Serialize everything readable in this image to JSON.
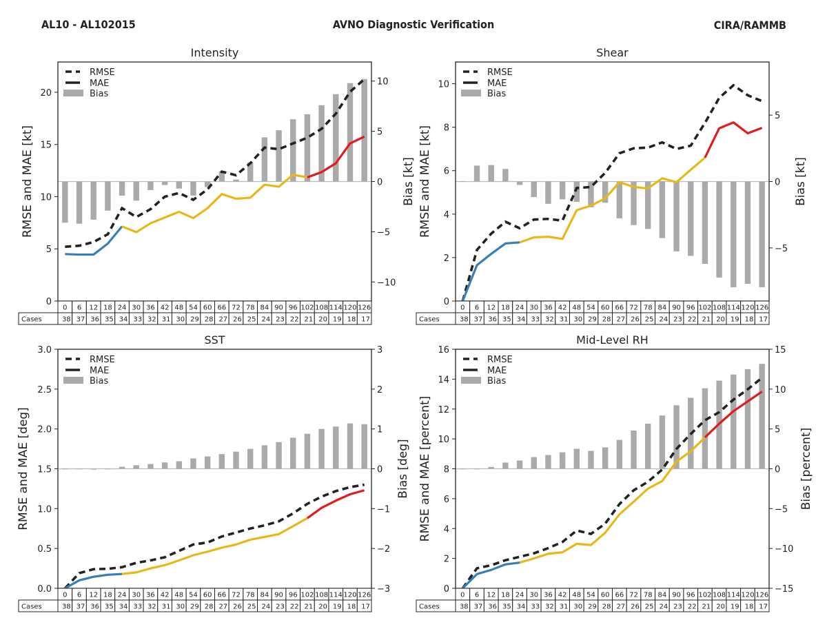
{
  "header": {
    "storm": "AL10 - AL102015",
    "title": "AVNO Diagnostic Verification",
    "source": "CIRA/RAMMB"
  },
  "table": {
    "row_label": "Cases",
    "hours": [
      "0",
      "6",
      "12",
      "18",
      "24",
      "30",
      "36",
      "42",
      "48",
      "54",
      "60",
      "66",
      "72",
      "78",
      "84",
      "90",
      "96",
      "102",
      "108",
      "114",
      "120",
      "126"
    ],
    "cases": [
      "38",
      "37",
      "36",
      "35",
      "34",
      "33",
      "32",
      "31",
      "30",
      "29",
      "28",
      "27",
      "26",
      "25",
      "24",
      "23",
      "22",
      "21",
      "20",
      "19",
      "18",
      "17"
    ]
  },
  "colors": {
    "rmse": "#222222",
    "bias": "#aaaaaa",
    "zero_line": "#bbbbbb",
    "axis": "#222222"
  },
  "chart_data": [
    {
      "type": "line",
      "title": "Intensity",
      "xlabel": "",
      "ylabel": "RMSE and MAE [kt]",
      "ylabel_right": "Bias [kt]",
      "x": [
        0,
        6,
        12,
        18,
        24,
        30,
        36,
        42,
        48,
        54,
        60,
        66,
        72,
        78,
        84,
        90,
        96,
        102,
        108,
        114,
        120,
        126
      ],
      "ylim": [
        0,
        22.9
      ],
      "ylim_right": [
        -11.9,
        11.9
      ],
      "yticks": [
        0,
        5,
        10,
        15,
        20
      ],
      "ytick_labels": [
        "0",
        "5",
        "10",
        "15",
        "20"
      ],
      "yticks_right": [
        -10,
        -5,
        0,
        5,
        10
      ],
      "ytick_labels_right": [
        "−10",
        "−5",
        "0",
        "5",
        "10"
      ],
      "legend_position": "top-left",
      "series": [
        {
          "name": "RMSE",
          "type": "line",
          "style": "dashed",
          "axis": "left",
          "color": "#222222",
          "values": [
            5.2,
            5.3,
            5.65,
            6.4,
            8.9,
            8.05,
            8.8,
            10.0,
            10.35,
            9.7,
            10.7,
            12.4,
            12.05,
            13.2,
            14.7,
            14.55,
            15.1,
            15.65,
            16.5,
            17.95,
            20.05,
            21.25
          ]
        },
        {
          "name": "MAE",
          "type": "line",
          "style": "solid",
          "axis": "left",
          "color": "#222222",
          "values": [
            4.5,
            4.45,
            4.45,
            5.5,
            7.15,
            6.6,
            7.45,
            8.0,
            8.55,
            7.95,
            8.9,
            10.25,
            9.8,
            9.9,
            11.15,
            10.95,
            12.1,
            11.85,
            12.35,
            13.2,
            15.1,
            15.75
          ],
          "color_segments": [
            {
              "from": 0,
              "to": 24,
              "color": "#377eb8"
            },
            {
              "from": 24,
              "to": 102,
              "color": "#e8b81a"
            },
            {
              "from": 102,
              "to": 126,
              "color": "#e41a1c"
            }
          ]
        },
        {
          "name": "Bias",
          "type": "bar",
          "axis": "right",
          "color": "#aaaaaa",
          "values": [
            -4.1,
            -4.2,
            -3.8,
            -2.9,
            -1.4,
            -1.9,
            -0.85,
            -0.35,
            -0.7,
            -1.4,
            -0.55,
            1.0,
            0.2,
            1.9,
            4.4,
            5.1,
            6.2,
            6.7,
            7.6,
            8.7,
            9.8,
            10.2
          ]
        }
      ]
    },
    {
      "type": "line",
      "title": "Shear",
      "xlabel": "",
      "ylabel": "RMSE and MAE [kt]",
      "ylabel_right": "Bias [kt]",
      "x": [
        0,
        6,
        12,
        18,
        24,
        30,
        36,
        42,
        48,
        54,
        60,
        66,
        72,
        78,
        84,
        90,
        96,
        102,
        108,
        114,
        120,
        126
      ],
      "ylim": [
        0,
        11
      ],
      "ylim_right": [
        -9,
        9
      ],
      "yticks": [
        0,
        2,
        4,
        6,
        8,
        10
      ],
      "ytick_labels": [
        "0",
        "2",
        "4",
        "6",
        "8",
        "10"
      ],
      "yticks_right": [
        -5,
        0,
        5
      ],
      "ytick_labels_right": [
        "−5",
        "0",
        "5"
      ],
      "legend_position": "top-left",
      "series": [
        {
          "name": "RMSE",
          "type": "line",
          "style": "dashed",
          "axis": "left",
          "color": "#222222",
          "values": [
            0,
            2.35,
            3.1,
            3.65,
            3.35,
            3.75,
            3.78,
            3.7,
            5.2,
            5.25,
            5.9,
            6.8,
            7.03,
            7.06,
            7.3,
            7.0,
            7.15,
            8.2,
            9.35,
            9.93,
            9.47,
            9.2
          ]
        },
        {
          "name": "MAE",
          "type": "line",
          "style": "solid",
          "axis": "left",
          "color": "#222222",
          "values": [
            0,
            1.65,
            2.17,
            2.65,
            2.7,
            2.93,
            2.96,
            2.86,
            4.18,
            4.39,
            4.72,
            5.47,
            5.25,
            5.18,
            5.65,
            5.47,
            6.04,
            6.6,
            7.95,
            8.22,
            7.72,
            7.97
          ],
          "color_segments": [
            {
              "from": 0,
              "to": 24,
              "color": "#377eb8"
            },
            {
              "from": 24,
              "to": 102,
              "color": "#e8b81a"
            },
            {
              "from": 102,
              "to": 126,
              "color": "#e41a1c"
            }
          ]
        },
        {
          "name": "Bias",
          "type": "bar",
          "axis": "right",
          "color": "#aaaaaa",
          "values": [
            0.02,
            1.2,
            1.24,
            0.95,
            -0.26,
            -1.17,
            -1.68,
            -1.34,
            -1.53,
            -1.94,
            -1.6,
            -2.77,
            -3.28,
            -3.57,
            -4.26,
            -5.26,
            -5.6,
            -6.2,
            -7.23,
            -7.96,
            -7.7,
            -7.96
          ]
        }
      ]
    },
    {
      "type": "line",
      "title": "SST",
      "xlabel": "",
      "ylabel": "RMSE and MAE [deg]",
      "ylabel_right": "Bias [deg]",
      "x": [
        0,
        6,
        12,
        18,
        24,
        30,
        36,
        42,
        48,
        54,
        60,
        66,
        72,
        78,
        84,
        90,
        96,
        102,
        108,
        114,
        120,
        126
      ],
      "ylim": [
        0,
        3
      ],
      "ylim_right": [
        -3,
        3
      ],
      "yticks": [
        0,
        0.5,
        1,
        1.5,
        2,
        2.5,
        3
      ],
      "ytick_labels": [
        "0.0",
        "0.5",
        "1.0",
        "1.5",
        "2.0",
        "2.5",
        "3.0"
      ],
      "yticks_right": [
        -3,
        -2,
        -1,
        0,
        1,
        2,
        3
      ],
      "ytick_labels_right": [
        "−3",
        "−2",
        "−1",
        "0",
        "1",
        "2",
        "3"
      ],
      "legend_position": "top-left",
      "series": [
        {
          "name": "RMSE",
          "type": "line",
          "style": "dashed",
          "axis": "left",
          "color": "#222222",
          "values": [
            0,
            0.19,
            0.24,
            0.245,
            0.265,
            0.32,
            0.35,
            0.39,
            0.47,
            0.55,
            0.575,
            0.65,
            0.7,
            0.75,
            0.79,
            0.84,
            0.94,
            1.06,
            1.15,
            1.22,
            1.27,
            1.3
          ]
        },
        {
          "name": "MAE",
          "type": "line",
          "style": "solid",
          "axis": "left",
          "color": "#222222",
          "values": [
            0,
            0.1,
            0.145,
            0.17,
            0.18,
            0.2,
            0.25,
            0.29,
            0.35,
            0.415,
            0.46,
            0.51,
            0.55,
            0.61,
            0.645,
            0.68,
            0.78,
            0.88,
            1.01,
            1.1,
            1.18,
            1.23
          ],
          "color_segments": [
            {
              "from": 0,
              "to": 24,
              "color": "#377eb8"
            },
            {
              "from": 24,
              "to": 102,
              "color": "#e8b81a"
            },
            {
              "from": 102,
              "to": 126,
              "color": "#e41a1c"
            }
          ]
        },
        {
          "name": "Bias",
          "type": "bar",
          "axis": "right",
          "color": "#aaaaaa",
          "values": [
            0,
            0,
            -0.02,
            0,
            0.05,
            0.09,
            0.12,
            0.16,
            0.19,
            0.26,
            0.31,
            0.37,
            0.43,
            0.5,
            0.59,
            0.67,
            0.78,
            0.88,
            1.0,
            1.06,
            1.14,
            1.12
          ]
        }
      ]
    },
    {
      "type": "line",
      "title": "Mid-Level RH",
      "xlabel": "",
      "ylabel": "RMSE and MAE [percent]",
      "ylabel_right": "Bias [percent]",
      "x": [
        0,
        6,
        12,
        18,
        24,
        30,
        36,
        42,
        48,
        54,
        60,
        66,
        72,
        78,
        84,
        90,
        96,
        102,
        108,
        114,
        120,
        126
      ],
      "ylim": [
        0,
        16
      ],
      "ylim_right": [
        -15,
        15
      ],
      "yticks": [
        0,
        2,
        4,
        6,
        8,
        10,
        12,
        14,
        16
      ],
      "ytick_labels": [
        "0",
        "2",
        "4",
        "6",
        "8",
        "10",
        "12",
        "14",
        "16"
      ],
      "yticks_right": [
        -15,
        -10,
        -5,
        0,
        5,
        10,
        15
      ],
      "ytick_labels_right": [
        "−15",
        "−10",
        "−5",
        "0",
        "5",
        "10",
        "15"
      ],
      "legend_position": "top-left",
      "series": [
        {
          "name": "RMSE",
          "type": "line",
          "style": "dashed",
          "axis": "left",
          "color": "#222222",
          "values": [
            0,
            1.34,
            1.54,
            1.88,
            2.11,
            2.34,
            2.69,
            3.1,
            3.87,
            3.64,
            4.33,
            5.64,
            6.56,
            7.13,
            7.95,
            9.33,
            10.33,
            11.25,
            11.79,
            12.63,
            13.32,
            14.09
          ]
        },
        {
          "name": "MAE",
          "type": "line",
          "style": "solid",
          "axis": "left",
          "color": "#222222",
          "values": [
            0,
            0.95,
            1.23,
            1.6,
            1.72,
            2.0,
            2.31,
            2.41,
            2.98,
            2.9,
            3.72,
            4.95,
            5.8,
            6.67,
            7.18,
            8.48,
            9.17,
            10.1,
            11.02,
            11.86,
            12.51,
            13.17
          ],
          "color_segments": [
            {
              "from": 0,
              "to": 24,
              "color": "#377eb8"
            },
            {
              "from": 24,
              "to": 102,
              "color": "#e8b81a"
            },
            {
              "from": 102,
              "to": 126,
              "color": "#e41a1c"
            }
          ]
        },
        {
          "name": "Bias",
          "type": "bar",
          "axis": "right",
          "color": "#aaaaaa",
          "values": [
            0,
            0,
            0.23,
            0.78,
            1.04,
            1.47,
            1.73,
            2.07,
            2.51,
            2.25,
            2.68,
            3.63,
            4.8,
            5.66,
            6.69,
            7.97,
            8.91,
            10.11,
            11.06,
            11.83,
            12.51,
            13.17
          ]
        }
      ]
    }
  ]
}
